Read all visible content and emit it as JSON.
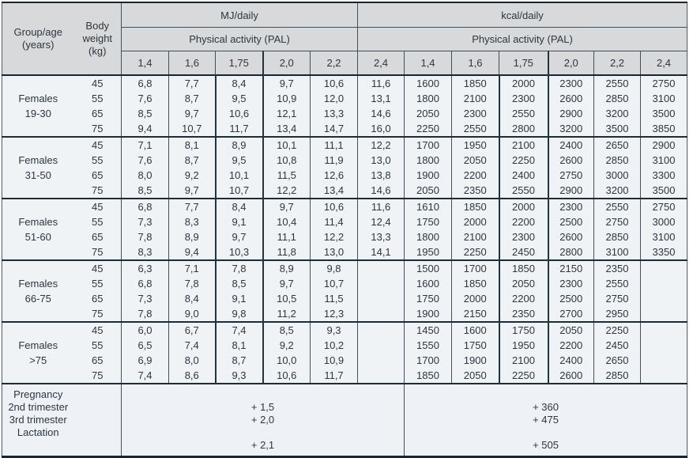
{
  "table": {
    "header": {
      "group_col": "Group/age\n(years)",
      "weight_col": "Body\nweight\n(kg)",
      "mj_section": "MJ/daily",
      "kcal_section": "kcal/daily",
      "pal_label_mj": "Physical activity (PAL)",
      "pal_label_kcal": "Physical activity (PAL)",
      "pal_values": [
        "1,4",
        "1,6",
        "1,75",
        "2,0",
        "2,2",
        "2,4",
        "1,4",
        "1,6",
        "1,75",
        "2,0",
        "2,2",
        "2,4"
      ]
    },
    "groups": [
      {
        "name": "Females",
        "age": "19-30",
        "rows": [
          {
            "weight": "45",
            "values": [
              "6,8",
              "7,7",
              "8,4",
              "9,7",
              "10,6",
              "11,6",
              "1600",
              "1850",
              "2000",
              "2300",
              "2550",
              "2750"
            ]
          },
          {
            "weight": "55",
            "values": [
              "7,6",
              "8,7",
              "9,5",
              "10,9",
              "12,0",
              "13,1",
              "1800",
              "2100",
              "2300",
              "2600",
              "2850",
              "3100"
            ]
          },
          {
            "weight": "65",
            "values": [
              "8,5",
              "9,7",
              "10,6",
              "12,1",
              "13,3",
              "14,6",
              "2050",
              "2300",
              "2550",
              "2900",
              "3200",
              "3500"
            ]
          },
          {
            "weight": "75",
            "values": [
              "9,4",
              "10,7",
              "11,7",
              "13,4",
              "14,7",
              "16,0",
              "2250",
              "2550",
              "2800",
              "3200",
              "3500",
              "3850"
            ]
          }
        ]
      },
      {
        "name": "Females",
        "age": "31-50",
        "rows": [
          {
            "weight": "45",
            "values": [
              "7,1",
              "8,1",
              "8,9",
              "10,1",
              "11,1",
              "12,2",
              "1700",
              "1950",
              "2100",
              "2400",
              "2650",
              "2900"
            ]
          },
          {
            "weight": "55",
            "values": [
              "7,6",
              "8,7",
              "9,5",
              "10,8",
              "11,9",
              "13,0",
              "1800",
              "2050",
              "2250",
              "2600",
              "2850",
              "3100"
            ]
          },
          {
            "weight": "65",
            "values": [
              "8,0",
              "9,2",
              "10,1",
              "11,5",
              "12,6",
              "13,8",
              "1900",
              "2200",
              "2400",
              "2750",
              "3000",
              "3300"
            ]
          },
          {
            "weight": "75",
            "values": [
              "8,5",
              "9,7",
              "10,7",
              "12,2",
              "13,4",
              "14,6",
              "2050",
              "2350",
              "2550",
              "2900",
              "3200",
              "3500"
            ]
          }
        ]
      },
      {
        "name": "Females",
        "age": "51-60",
        "rows": [
          {
            "weight": "45",
            "values": [
              "6,8",
              "7,7",
              "8,4",
              "9,7",
              "10,6",
              "11,6",
              "1610",
              "1850",
              "2000",
              "2300",
              "2550",
              "2750"
            ]
          },
          {
            "weight": "55",
            "values": [
              "7,3",
              "8,3",
              "9,1",
              "10,4",
              "11,4",
              "12,4",
              "1750",
              "2000",
              "2200",
              "2500",
              "2750",
              "3000"
            ]
          },
          {
            "weight": "65",
            "values": [
              "7,8",
              "8,9",
              "9,7",
              "11,1",
              "12,2",
              "13,3",
              "1800",
              "2100",
              "2300",
              "2600",
              "2850",
              "3100"
            ]
          },
          {
            "weight": "75",
            "values": [
              "8,3",
              "9,4",
              "10,3",
              "11,8",
              "13,0",
              "14,1",
              "1950",
              "2250",
              "2450",
              "2800",
              "3100",
              "3350"
            ]
          }
        ]
      },
      {
        "name": "Females",
        "age": "66-75",
        "rows": [
          {
            "weight": "45",
            "values": [
              "6,3",
              "7,1",
              "7,8",
              "8,9",
              "9,8",
              "",
              "1500",
              "1700",
              "1850",
              "2150",
              "2350",
              ""
            ]
          },
          {
            "weight": "55",
            "values": [
              "6,8",
              "7,8",
              "8,5",
              "9,7",
              "10,7",
              "",
              "1600",
              "1850",
              "2050",
              "2300",
              "2550",
              ""
            ]
          },
          {
            "weight": "65",
            "values": [
              "7,3",
              "8,4",
              "9,1",
              "10,5",
              "11,5",
              "",
              "1750",
              "2000",
              "2200",
              "2500",
              "2750",
              ""
            ]
          },
          {
            "weight": "75",
            "values": [
              "7,8",
              "9,0",
              "9,8",
              "11,2",
              "12,3",
              "",
              "1900",
              "2150",
              "2350",
              "2700",
              "2950",
              ""
            ]
          }
        ]
      },
      {
        "name": "Females",
        "age": ">75",
        "rows": [
          {
            "weight": "45",
            "values": [
              "6,0",
              "6,7",
              "7,4",
              "8,5",
              "9,3",
              "",
              "1450",
              "1600",
              "1750",
              "2050",
              "2250",
              ""
            ]
          },
          {
            "weight": "55",
            "values": [
              "6,5",
              "7,4",
              "8,1",
              "9,2",
              "10,2",
              "",
              "1550",
              "1750",
              "1950",
              "2200",
              "2450",
              ""
            ]
          },
          {
            "weight": "65",
            "values": [
              "6,9",
              "8,0",
              "8,7",
              "10,0",
              "10,9",
              "",
              "1700",
              "1900",
              "2100",
              "2400",
              "2650",
              ""
            ]
          },
          {
            "weight": "75",
            "values": [
              "7,4",
              "8,6",
              "9,3",
              "10,6",
              "11,7",
              "",
              "1850",
              "2050",
              "2250",
              "2600",
              "2850",
              ""
            ]
          }
        ]
      }
    ],
    "notes": {
      "labels": [
        "Pregnancy",
        "2nd trimester",
        "3rd trimester",
        "Lactation"
      ],
      "mj_lines": [
        "",
        "+ 1,5",
        "+ 2,0",
        "",
        "+ 2,1"
      ],
      "kcal_lines": [
        "",
        "+ 360",
        "+ 475",
        "",
        "+ 505"
      ]
    },
    "colors": {
      "header_bg": "#d7d9da",
      "group_bg": "#d3d5d6",
      "data_bg": "#eff3f6",
      "border_dark": "#17262f",
      "border_mid": "#3f4f5b"
    }
  }
}
